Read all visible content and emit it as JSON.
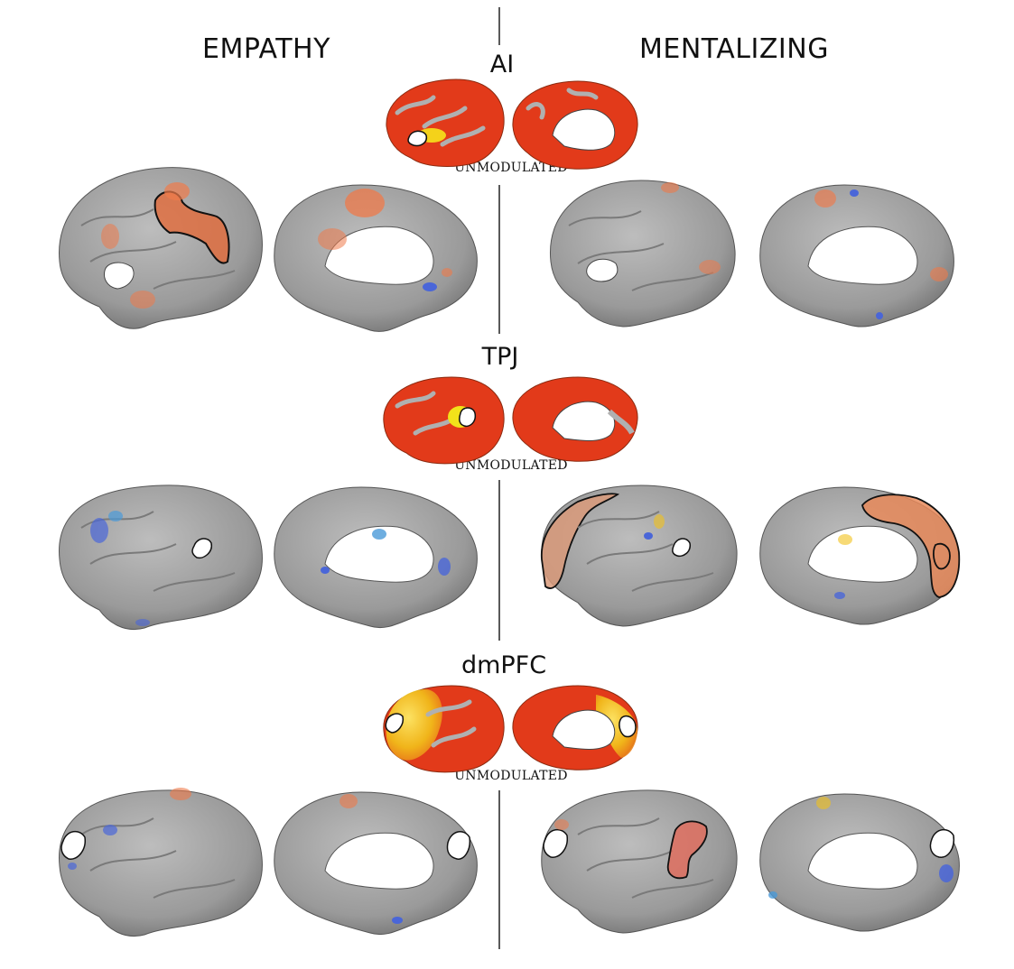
{
  "columns": {
    "left": "EMPATHY",
    "right": "MENTALIZING"
  },
  "sections": [
    {
      "seed": "AI",
      "unmodulated_label": "UNMODULATED"
    },
    {
      "seed": "TPJ",
      "unmodulated_label": "UNMODULATED"
    },
    {
      "seed": "dmPFC",
      "unmodulated_label": "UNMODULATED"
    }
  ],
  "colors": {
    "cortex": "#9a9a9a",
    "activation_red": "#e8341c",
    "activation_yellow": "#f2e21a",
    "deactivation_blue": "#4a66d8",
    "roi_outline": "#111111",
    "seed_fill": "#ffffff"
  }
}
